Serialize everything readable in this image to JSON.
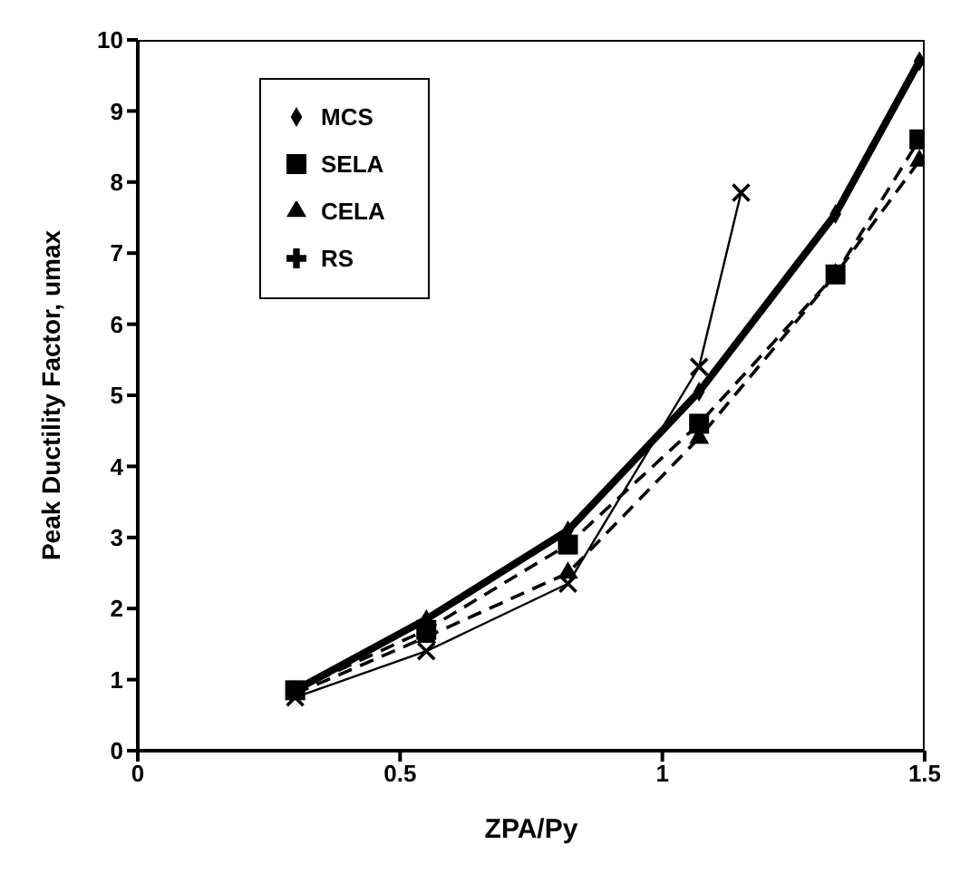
{
  "chart_data": {
    "type": "line",
    "xlabel": "ZPA/Py",
    "ylabel": "Peak Ductility Factor, umax",
    "xlim": [
      0,
      1.5
    ],
    "xticks": [
      0,
      0.5,
      1,
      1.5
    ],
    "ylim": [
      0,
      10
    ],
    "yticks": [
      0,
      1,
      2,
      3,
      4,
      5,
      6,
      7,
      8,
      9,
      10
    ],
    "grid": false,
    "legend": "top left",
    "series": [
      {
        "name": "MCS",
        "color": "#000000",
        "marker": "diamond",
        "line_style": "solid",
        "x": [
          0.3,
          0.55,
          0.82,
          1.07,
          1.33,
          1.49
        ],
        "values": [
          0.85,
          1.85,
          3.1,
          5.05,
          7.55,
          9.7
        ]
      },
      {
        "name": "SELA",
        "color": "#000000",
        "marker": "square",
        "line_style": "dashed",
        "x": [
          0.3,
          0.55,
          0.82,
          1.07,
          1.33,
          1.49
        ],
        "values": [
          0.85,
          1.7,
          2.9,
          4.6,
          6.7,
          8.6
        ]
      },
      {
        "name": "CELA",
        "color": "#000000",
        "marker": "triangle",
        "line_style": "dashed",
        "x": [
          0.3,
          0.55,
          0.82,
          1.07,
          1.33,
          1.49
        ],
        "values": [
          0.8,
          1.6,
          2.5,
          4.4,
          6.7,
          8.3
        ]
      },
      {
        "name": "RS",
        "color": "#000000",
        "marker": "cross",
        "line_style": "solid",
        "x": [
          0.3,
          0.55,
          0.82,
          1.07,
          1.15
        ],
        "values": [
          0.75,
          1.4,
          2.35,
          5.4,
          7.85
        ]
      }
    ]
  }
}
